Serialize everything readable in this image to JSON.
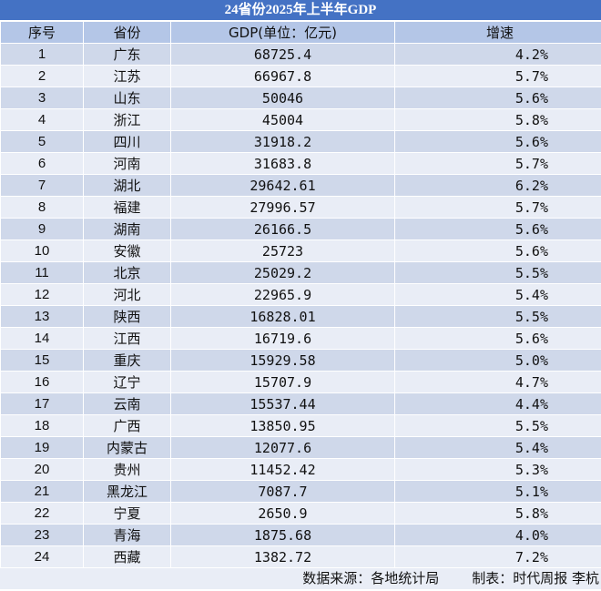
{
  "title": "24省份2025年上半年GDP",
  "headers": {
    "rank": "序号",
    "province": "省份",
    "gdp": "GDP(单位：亿元)",
    "growth": "增速"
  },
  "rows": [
    {
      "rank": "1",
      "province": "广东",
      "gdp": "68725.4",
      "growth": "4.2%"
    },
    {
      "rank": "2",
      "province": "江苏",
      "gdp": "66967.8",
      "growth": "5.7%"
    },
    {
      "rank": "3",
      "province": "山东",
      "gdp": "50046",
      "growth": "5.6%"
    },
    {
      "rank": "4",
      "province": "浙江",
      "gdp": "45004",
      "growth": "5.8%"
    },
    {
      "rank": "5",
      "province": "四川",
      "gdp": "31918.2",
      "growth": "5.6%"
    },
    {
      "rank": "6",
      "province": "河南",
      "gdp": "31683.8",
      "growth": "5.7%"
    },
    {
      "rank": "7",
      "province": "湖北",
      "gdp": "29642.61",
      "growth": "6.2%"
    },
    {
      "rank": "8",
      "province": "福建",
      "gdp": "27996.57",
      "growth": "5.7%"
    },
    {
      "rank": "9",
      "province": "湖南",
      "gdp": "26166.5",
      "growth": "5.6%"
    },
    {
      "rank": "10",
      "province": "安徽",
      "gdp": "25723",
      "growth": "5.6%"
    },
    {
      "rank": "11",
      "province": "北京",
      "gdp": "25029.2",
      "growth": "5.5%"
    },
    {
      "rank": "12",
      "province": "河北",
      "gdp": "22965.9",
      "growth": "5.4%"
    },
    {
      "rank": "13",
      "province": "陕西",
      "gdp": "16828.01",
      "growth": "5.5%"
    },
    {
      "rank": "14",
      "province": "江西",
      "gdp": "16719.6",
      "growth": "5.6%"
    },
    {
      "rank": "15",
      "province": "重庆",
      "gdp": "15929.58",
      "growth": "5.0%"
    },
    {
      "rank": "16",
      "province": "辽宁",
      "gdp": "15707.9",
      "growth": "4.7%"
    },
    {
      "rank": "17",
      "province": "云南",
      "gdp": "15537.44",
      "growth": "4.4%"
    },
    {
      "rank": "18",
      "province": "广西",
      "gdp": "13850.95",
      "growth": "5.5%"
    },
    {
      "rank": "19",
      "province": "内蒙古",
      "gdp": "12077.6",
      "growth": "5.4%"
    },
    {
      "rank": "20",
      "province": "贵州",
      "gdp": "11452.42",
      "growth": "5.3%"
    },
    {
      "rank": "21",
      "province": "黑龙江",
      "gdp": "7087.7",
      "growth": "5.1%"
    },
    {
      "rank": "22",
      "province": "宁夏",
      "gdp": "2650.9",
      "growth": "5.8%"
    },
    {
      "rank": "23",
      "province": "青海",
      "gdp": "1875.68",
      "growth": "4.0%"
    },
    {
      "rank": "24",
      "province": "西藏",
      "gdp": "1382.72",
      "growth": "7.2%"
    }
  ],
  "footer": {
    "source": "数据来源：各地统计局",
    "author": "制表：时代周报 李杭"
  },
  "colors": {
    "title_bg": "#4472c4",
    "header_bg": "#b4c6e7",
    "row_odd": "#cfd8ea",
    "row_even": "#e9edf6"
  }
}
